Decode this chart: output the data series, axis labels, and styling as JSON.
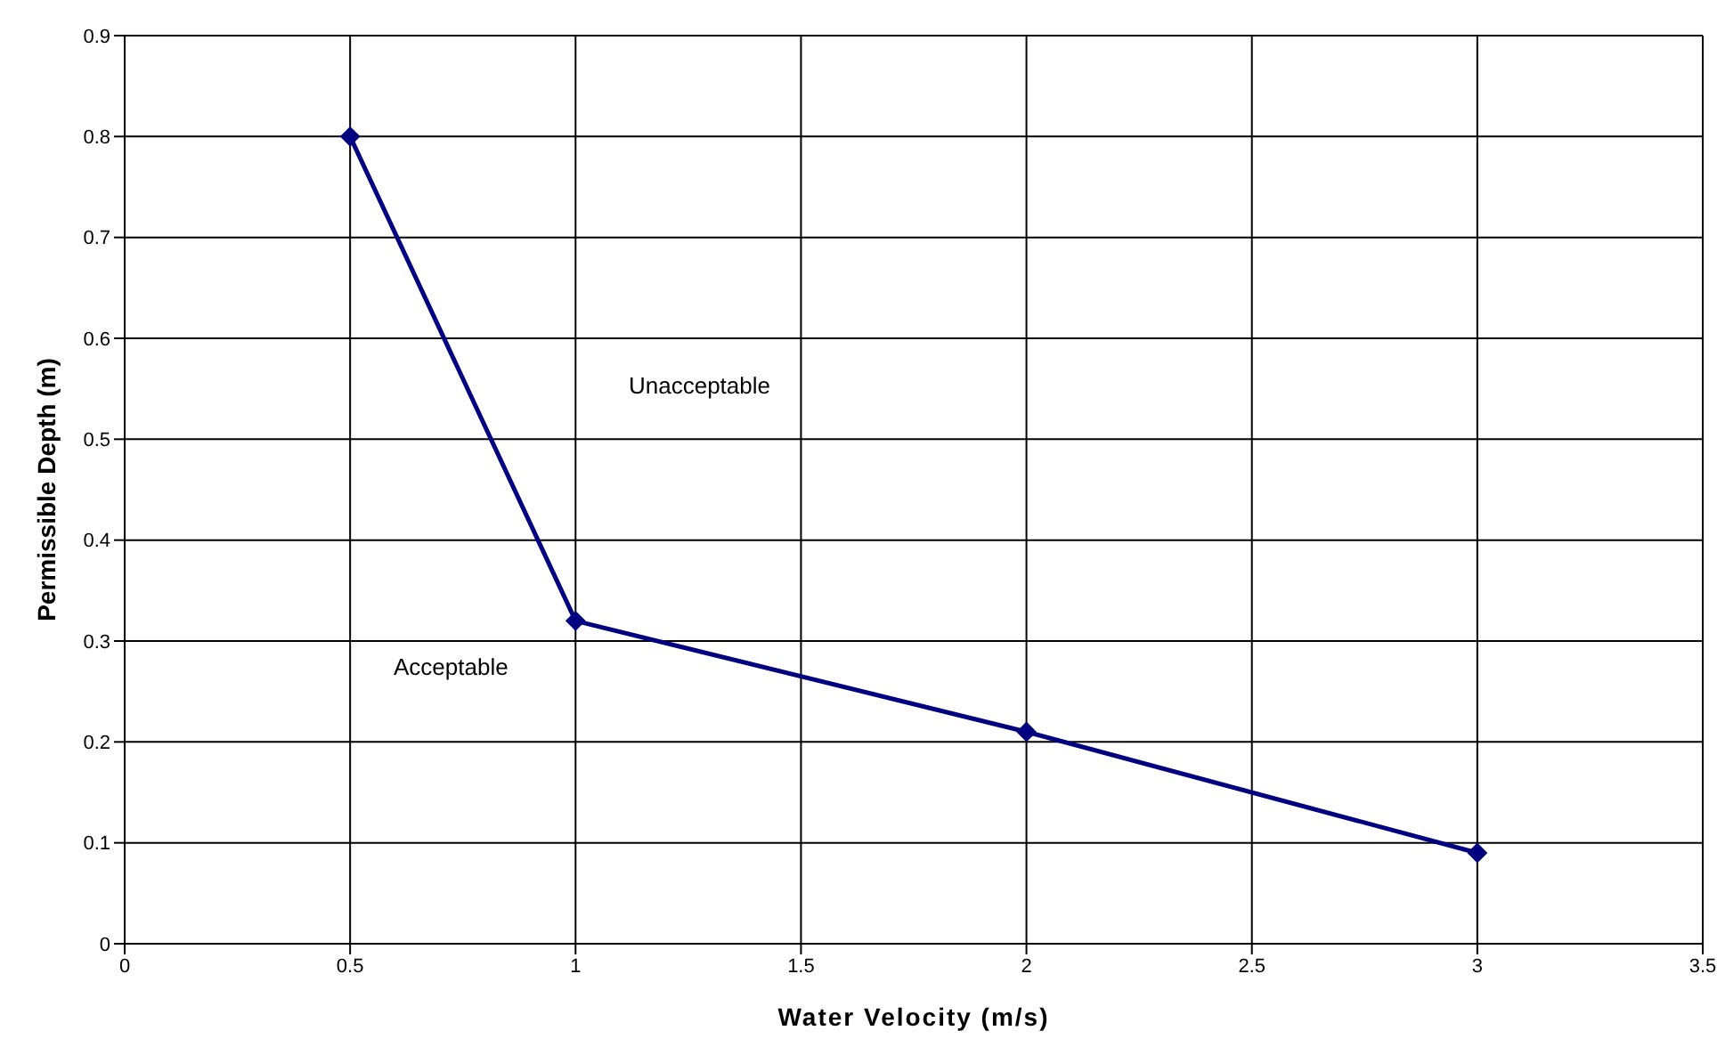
{
  "chart_data": {
    "type": "line",
    "xlabel": "Water Velocity (m/s)",
    "ylabel": "Permissible Depth (m)",
    "x": [
      0.5,
      1,
      2,
      3
    ],
    "series": [
      {
        "color": "#000080",
        "values": [
          0.8,
          0.32,
          0.21,
          0.09
        ]
      }
    ],
    "xlim": [
      0,
      3.5
    ],
    "xticks": [
      0,
      0.5,
      1,
      1.5,
      2,
      2.5,
      3,
      3.5
    ],
    "ylim": [
      0,
      0.9
    ],
    "yticks": [
      0,
      0.1,
      0.2,
      0.3,
      0.4,
      0.5,
      0.6,
      0.7,
      0.8,
      0.9
    ],
    "grid": true,
    "legend": false,
    "marker": "diamond",
    "line_style": "solid",
    "annotations": [
      "Unacceptable",
      "Acceptable"
    ]
  }
}
